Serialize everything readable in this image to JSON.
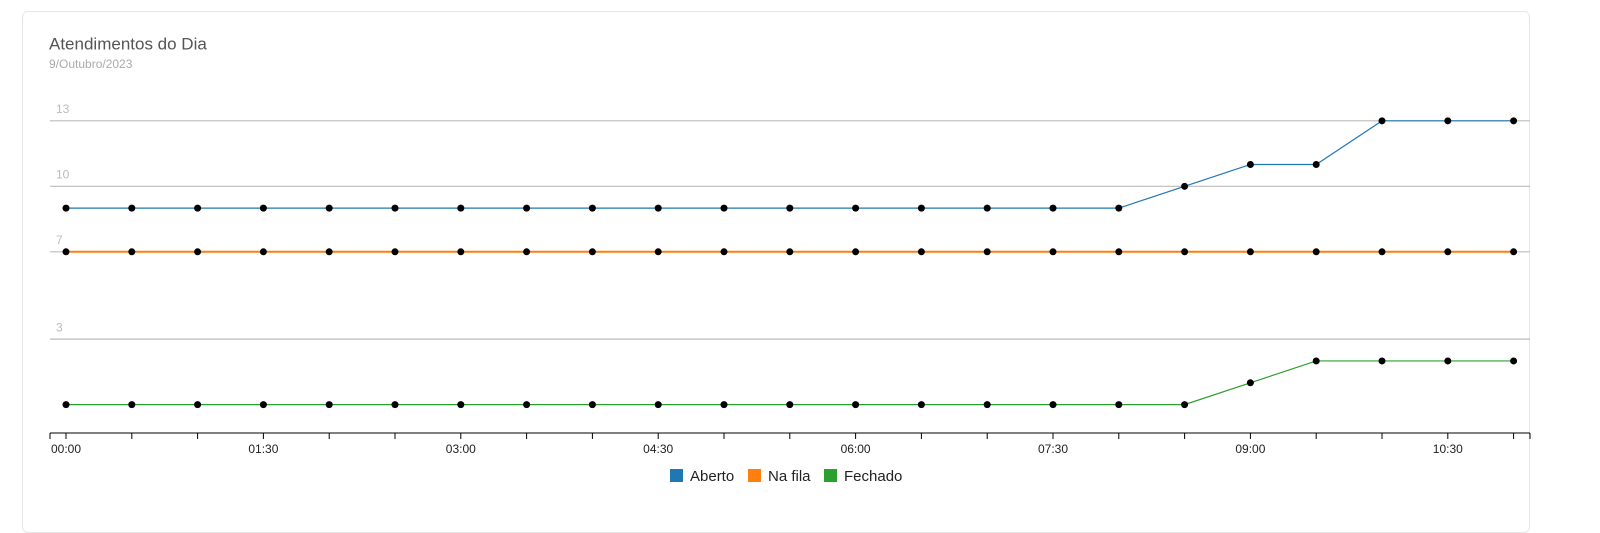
{
  "chart_data": {
    "type": "line",
    "title": "Atendimentos do Dia",
    "subtitle": "9/Outubro/2023",
    "x": [
      "00:00",
      "00:30",
      "01:00",
      "01:30",
      "02:00",
      "02:30",
      "03:00",
      "03:30",
      "04:00",
      "04:30",
      "05:00",
      "05:30",
      "06:00",
      "06:30",
      "07:00",
      "07:30",
      "08:00",
      "08:30",
      "09:00",
      "09:30",
      "10:00",
      "10:30",
      "11:00"
    ],
    "xticks": [
      "00:00",
      "01:30",
      "03:00",
      "04:30",
      "06:00",
      "07:30",
      "09:00",
      "10:30"
    ],
    "ylim": [
      -1.3,
      14
    ],
    "yticks": [
      3,
      7,
      10,
      13
    ],
    "grid": true,
    "legend": "bottom",
    "series": [
      {
        "name": "Aberto",
        "color": "#1f77b4",
        "values": [
          9,
          9,
          9,
          9,
          9,
          9,
          9,
          9,
          9,
          9,
          9,
          9,
          9,
          9,
          9,
          9,
          9,
          10,
          11,
          11,
          13,
          13,
          13
        ]
      },
      {
        "name": "Na fila",
        "color": "#ff7f0e",
        "values": [
          7,
          7,
          7,
          7,
          7,
          7,
          7,
          7,
          7,
          7,
          7,
          7,
          7,
          7,
          7,
          7,
          7,
          7,
          7,
          7,
          7,
          7,
          7
        ]
      },
      {
        "name": "Fechado",
        "color": "#2ca02c",
        "values": [
          0,
          0,
          0,
          0,
          0,
          0,
          0,
          0,
          0,
          0,
          0,
          0,
          0,
          0,
          0,
          0,
          0,
          0,
          1,
          2,
          2,
          2,
          2
        ]
      }
    ]
  }
}
